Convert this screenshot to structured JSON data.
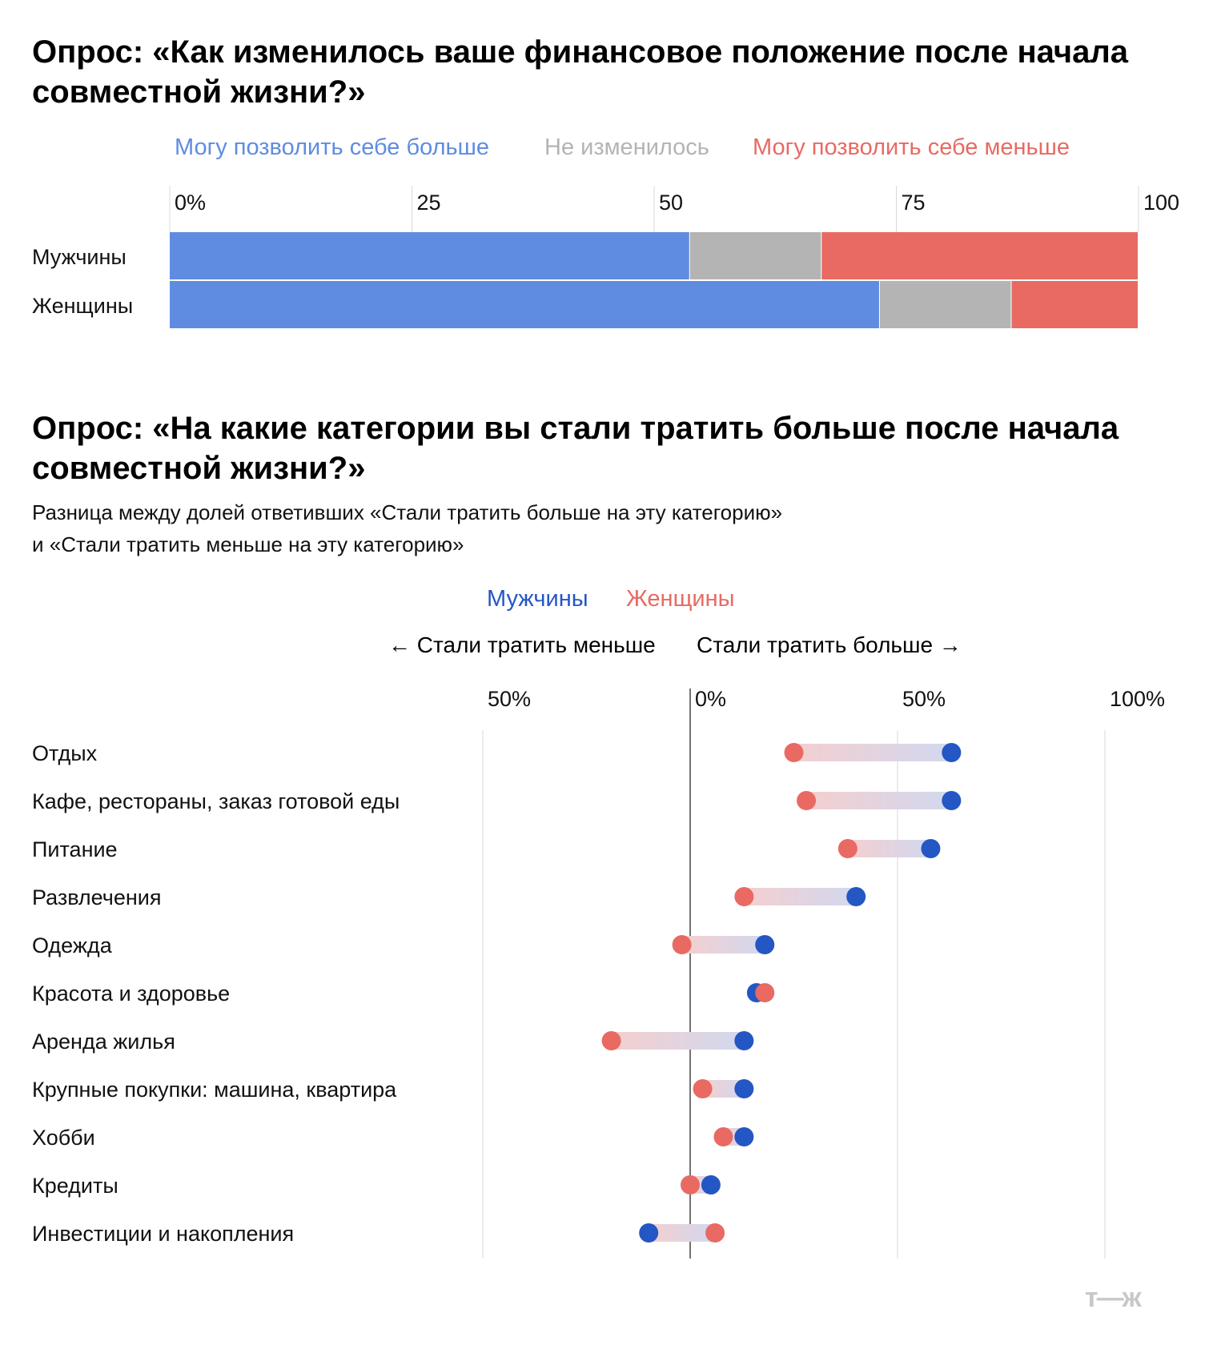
{
  "chart_data": [
    {
      "type": "bar",
      "stacked": true,
      "orientation": "horizontal",
      "title": "Опрос: «Как изменилось ваше финансовое положение после начала совместной жизни?»",
      "categories": [
        "Мужчины",
        "Женщины"
      ],
      "series": [
        {
          "name": "Могу позволить себе больше",
          "color": "#5f8ce0",
          "values": [
            53.7,
            73.3
          ]
        },
        {
          "name": "Не изменилось",
          "color": "#b4b4b4",
          "values": [
            13.6,
            13.6
          ]
        },
        {
          "name": "Могу позволить себе меньше",
          "color": "#e86a62",
          "values": [
            32.7,
            13.1
          ]
        }
      ],
      "xlim": [
        0,
        100
      ],
      "xticks": [
        "0%",
        "25",
        "50",
        "75",
        "100"
      ],
      "legend_position": "top",
      "grid": true
    },
    {
      "type": "scatter",
      "subtype": "dumbbell",
      "title": "Опрос: «На какие категории вы стали тратить больше после начала совместной жизни?»",
      "subtitle": [
        "Разница между долей ответивших «Стали тратить больше на эту категорию»",
        "и «Стали тратить меньше на эту категорию»"
      ],
      "direction_labels": {
        "left": "← Стали тратить меньше",
        "right": "Стали тратить больше →"
      },
      "categories": [
        "Отдых",
        "Кафе, рестораны, заказ готовой еды",
        "Питание",
        "Развлечения",
        "Одежда",
        "Красота и здоровье",
        "Аренда жилья",
        "Крупные покупки: машина, квартира",
        "Хобби",
        "Кредиты",
        "Инвестиции и накопления"
      ],
      "series": [
        {
          "name": "Мужчины",
          "color": "#2456c4",
          "values": [
            63,
            63,
            58,
            40,
            18,
            16,
            13,
            13,
            13,
            5,
            -10
          ]
        },
        {
          "name": "Женщины",
          "color": "#e86a62",
          "values": [
            25,
            28,
            38,
            13,
            -2,
            18,
            -19,
            3,
            8,
            0,
            6
          ]
        }
      ],
      "xlim": [
        -50,
        100
      ],
      "xticks": [
        "50%",
        "0%",
        "50%",
        "100%"
      ],
      "legend_position": "top",
      "grid": true
    }
  ],
  "logo_text": "т—ж"
}
